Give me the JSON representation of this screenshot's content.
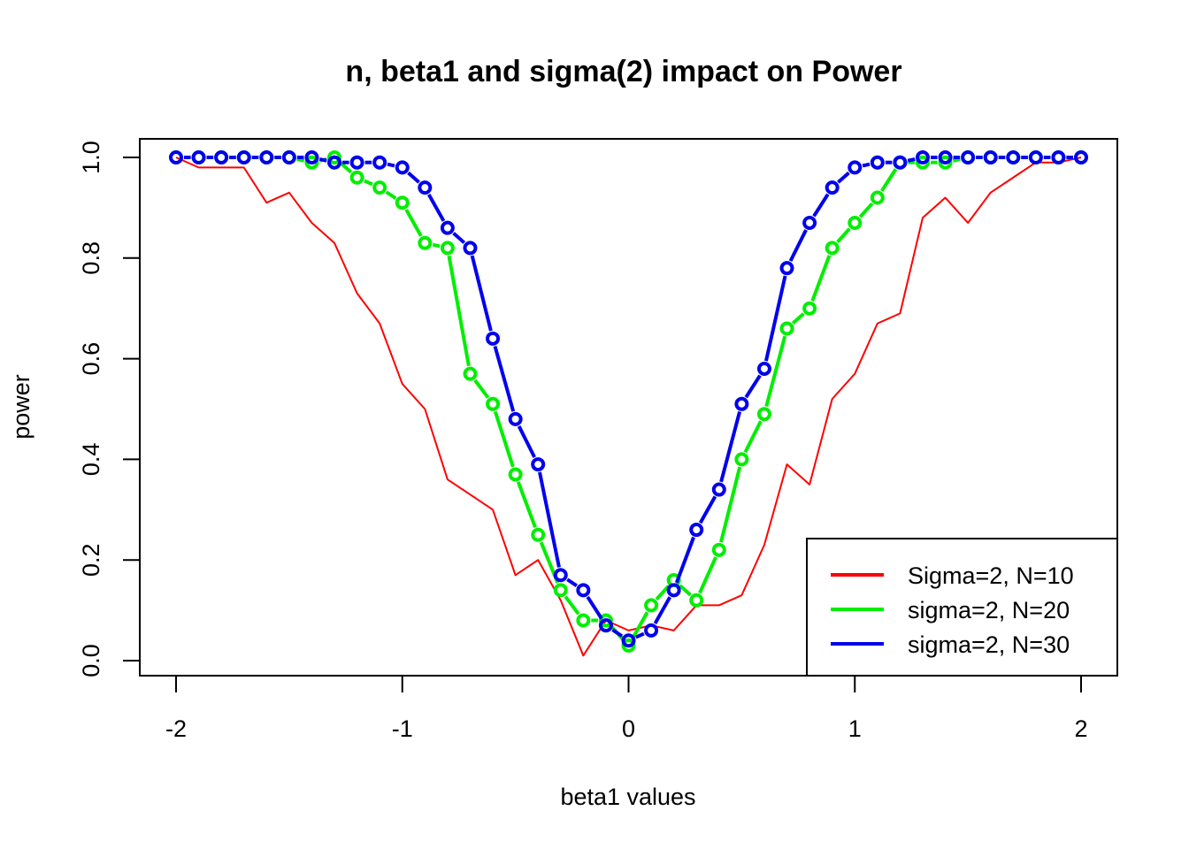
{
  "chart_data": {
    "type": "line",
    "title": "n, beta1 and sigma(2) impact on Power",
    "xlabel": "beta1 values",
    "ylabel": "power",
    "xlim": [
      -2,
      2
    ],
    "ylim": [
      0,
      1
    ],
    "x_ticks": [
      "-2",
      "-1",
      "0",
      "1",
      "2"
    ],
    "y_ticks": [
      "0.0",
      "0.2",
      "0.4",
      "0.6",
      "0.8",
      "1.0"
    ],
    "grid": false,
    "legend_position": "bottom-right",
    "x": [
      -2.0,
      -1.9,
      -1.8,
      -1.7,
      -1.6,
      -1.5,
      -1.4,
      -1.3,
      -1.2,
      -1.1,
      -1.0,
      -0.9,
      -0.8,
      -0.7,
      -0.6,
      -0.5,
      -0.4,
      -0.3,
      -0.2,
      -0.1,
      0.0,
      0.1,
      0.2,
      0.3,
      0.4,
      0.5,
      0.6,
      0.7,
      0.8,
      0.9,
      1.0,
      1.1,
      1.2,
      1.3,
      1.4,
      1.5,
      1.6,
      1.7,
      1.8,
      1.9,
      2.0
    ],
    "series": [
      {
        "name": "Sigma=2, N=10",
        "color": "#ff0000",
        "style": "line",
        "values": [
          1.0,
          0.98,
          0.98,
          0.98,
          0.91,
          0.93,
          0.87,
          0.83,
          0.73,
          0.67,
          0.55,
          0.5,
          0.36,
          0.33,
          0.3,
          0.17,
          0.2,
          0.12,
          0.01,
          0.08,
          0.06,
          0.07,
          0.06,
          0.11,
          0.11,
          0.13,
          0.23,
          0.39,
          0.35,
          0.52,
          0.57,
          0.67,
          0.69,
          0.88,
          0.92,
          0.87,
          0.93,
          0.96,
          0.99,
          0.99,
          1.0
        ]
      },
      {
        "name": "sigma=2, N=20",
        "color": "#00ee00",
        "style": "both",
        "values": [
          1.0,
          1.0,
          1.0,
          1.0,
          1.0,
          1.0,
          0.99,
          1.0,
          0.96,
          0.94,
          0.91,
          0.83,
          0.82,
          0.57,
          0.51,
          0.37,
          0.25,
          0.14,
          0.08,
          0.08,
          0.03,
          0.11,
          0.16,
          0.12,
          0.22,
          0.4,
          0.49,
          0.66,
          0.7,
          0.82,
          0.87,
          0.92,
          0.99,
          0.99,
          0.99,
          1.0,
          1.0,
          1.0,
          1.0,
          1.0,
          1.0
        ]
      },
      {
        "name": "sigma=2, N=30",
        "color": "#0000ee",
        "style": "both",
        "values": [
          1.0,
          1.0,
          1.0,
          1.0,
          1.0,
          1.0,
          1.0,
          0.99,
          0.99,
          0.99,
          0.98,
          0.94,
          0.86,
          0.82,
          0.64,
          0.48,
          0.39,
          0.17,
          0.14,
          0.07,
          0.04,
          0.06,
          0.14,
          0.26,
          0.34,
          0.51,
          0.58,
          0.78,
          0.87,
          0.94,
          0.98,
          0.99,
          0.99,
          1.0,
          1.0,
          1.0,
          1.0,
          1.0,
          1.0,
          1.0,
          1.0
        ]
      }
    ]
  }
}
